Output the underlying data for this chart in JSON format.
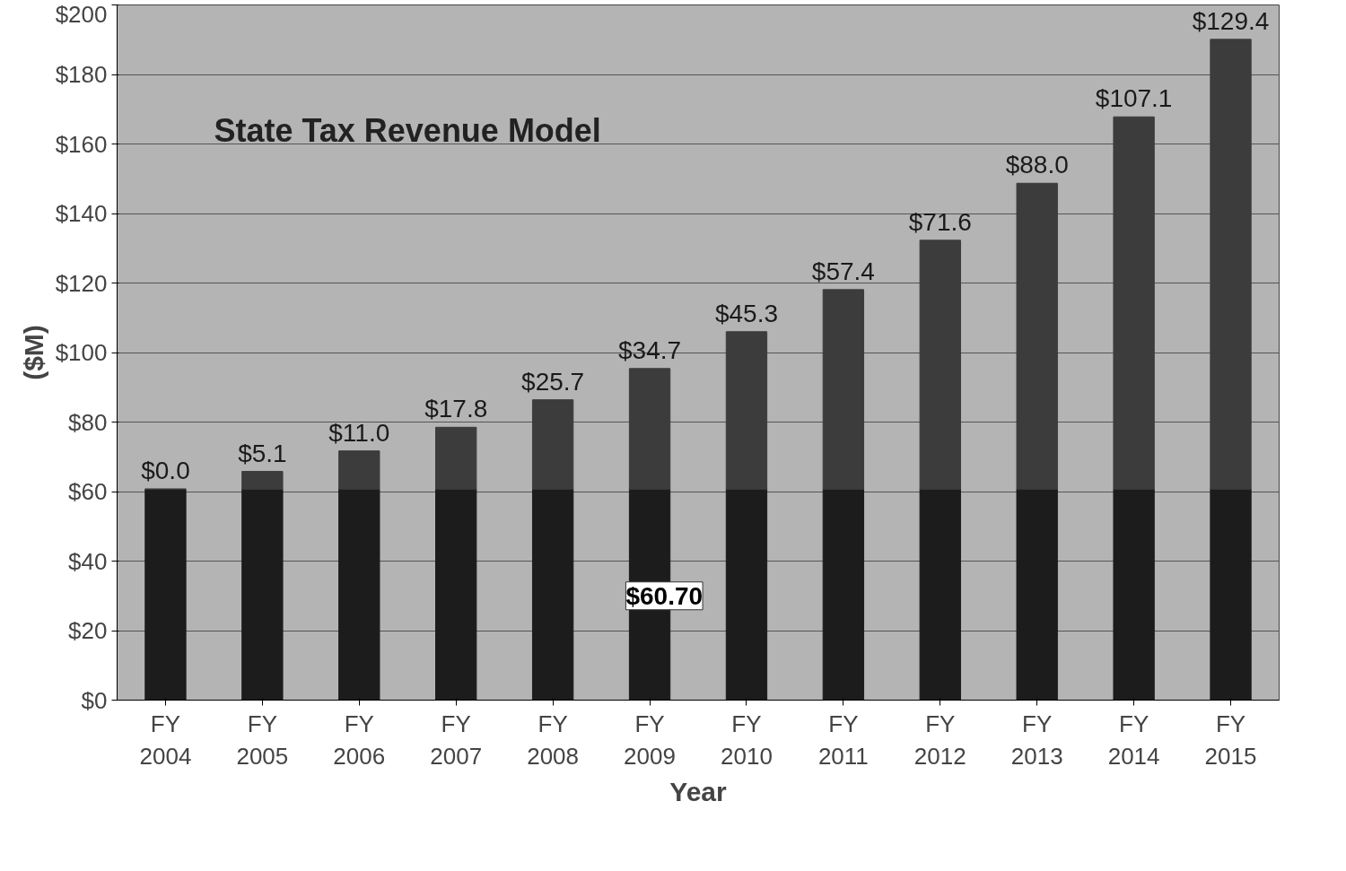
{
  "chart_data": {
    "type": "bar",
    "title": "State Tax Revenue Model",
    "xlabel": "Year",
    "ylabel": "($M)",
    "categories": [
      "FY\n2004",
      "FY\n2005",
      "FY\n2006",
      "FY\n2007",
      "FY\n2008",
      "FY\n2009",
      "FY\n2010",
      "FY\n2011",
      "FY\n2012",
      "FY\n2013",
      "FY\n2014",
      "FY\n2015"
    ],
    "stacked": true,
    "series": [
      {
        "color": "#1c1c1c",
        "values": [
          60.7,
          60.7,
          60.7,
          60.7,
          60.7,
          60.7,
          60.7,
          60.7,
          60.7,
          60.7,
          60.7,
          60.7
        ],
        "value_labels": [
          null,
          null,
          null,
          null,
          null,
          "$60.70",
          null,
          null,
          null,
          null,
          null,
          null
        ]
      },
      {
        "color": "#3c3c3c",
        "values": [
          0.0,
          5.1,
          11.0,
          17.8,
          25.7,
          34.7,
          45.3,
          57.4,
          71.6,
          88.0,
          107.1,
          129.4
        ],
        "value_labels": [
          "$0.0",
          "$5.1",
          "$11.0",
          "$17.8",
          "$25.7",
          "$34.7",
          "$45.3",
          "$57.4",
          "$71.6",
          "$88.0",
          "$107.1",
          "$129.4"
        ]
      }
    ],
    "ylim": [
      0,
      200
    ],
    "yticks": [
      {
        "value": 0,
        "label": "$0"
      },
      {
        "value": 20,
        "label": "$20"
      },
      {
        "value": 40,
        "label": "$40"
      },
      {
        "value": 60,
        "label": "$60"
      },
      {
        "value": 80,
        "label": "$80"
      },
      {
        "value": 100,
        "label": "$100"
      },
      {
        "value": 120,
        "label": "$120"
      },
      {
        "value": 140,
        "label": "$140"
      },
      {
        "value": 160,
        "label": "$160"
      },
      {
        "value": 180,
        "label": "$180"
      },
      {
        "value": 200,
        "label": "$200"
      }
    ],
    "grid": "y"
  }
}
